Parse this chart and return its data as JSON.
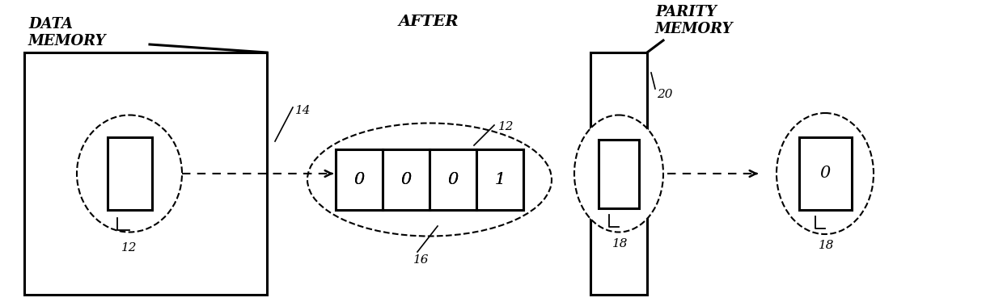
{
  "title": "AFTER",
  "bg_color": "#ffffff",
  "label_data_memory": "DATA\nMEMORY",
  "label_parity_memory": "PARITY\nMEMORY",
  "data_word_values": [
    "0",
    "0",
    "0",
    "1"
  ],
  "parity_value": "0",
  "ref_12_data": "12",
  "ref_12_word": "12",
  "ref_14": "14",
  "ref_16": "16",
  "ref_18_parity_box": "18",
  "ref_18_parity_out": "18",
  "ref_20": "20"
}
